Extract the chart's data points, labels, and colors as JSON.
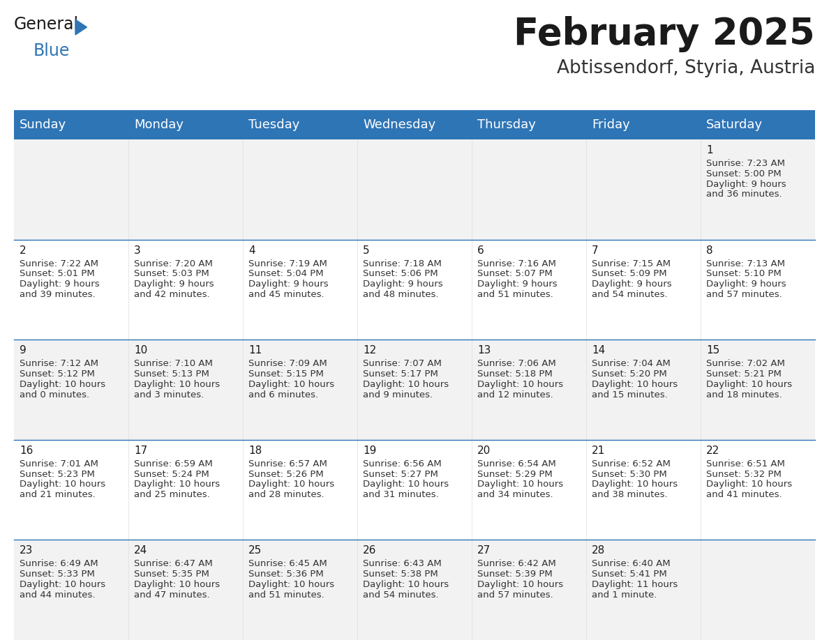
{
  "title": "February 2025",
  "subtitle": "Abtissendorf, Styria, Austria",
  "header_color": "#2E75B6",
  "header_text_color": "#FFFFFF",
  "background_color": "#FFFFFF",
  "cell_bg_white": "#FFFFFF",
  "cell_bg_gray": "#F2F2F2",
  "separator_color": "#2E75B6",
  "cell_border_color": "#FFFFFF",
  "day_names": [
    "Sunday",
    "Monday",
    "Tuesday",
    "Wednesday",
    "Thursday",
    "Friday",
    "Saturday"
  ],
  "title_fontsize": 38,
  "subtitle_fontsize": 19,
  "header_fontsize": 13,
  "cell_day_fontsize": 11,
  "cell_info_fontsize": 9.5,
  "logo_general_fontsize": 17,
  "logo_blue_fontsize": 17,
  "days": [
    {
      "day": 1,
      "col": 6,
      "row": 0,
      "sunrise": "7:23 AM",
      "sunset": "5:00 PM",
      "daylight_h": "9 hours",
      "daylight_m": "and 36 minutes."
    },
    {
      "day": 2,
      "col": 0,
      "row": 1,
      "sunrise": "7:22 AM",
      "sunset": "5:01 PM",
      "daylight_h": "9 hours",
      "daylight_m": "and 39 minutes."
    },
    {
      "day": 3,
      "col": 1,
      "row": 1,
      "sunrise": "7:20 AM",
      "sunset": "5:03 PM",
      "daylight_h": "9 hours",
      "daylight_m": "and 42 minutes."
    },
    {
      "day": 4,
      "col": 2,
      "row": 1,
      "sunrise": "7:19 AM",
      "sunset": "5:04 PM",
      "daylight_h": "9 hours",
      "daylight_m": "and 45 minutes."
    },
    {
      "day": 5,
      "col": 3,
      "row": 1,
      "sunrise": "7:18 AM",
      "sunset": "5:06 PM",
      "daylight_h": "9 hours",
      "daylight_m": "and 48 minutes."
    },
    {
      "day": 6,
      "col": 4,
      "row": 1,
      "sunrise": "7:16 AM",
      "sunset": "5:07 PM",
      "daylight_h": "9 hours",
      "daylight_m": "and 51 minutes."
    },
    {
      "day": 7,
      "col": 5,
      "row": 1,
      "sunrise": "7:15 AM",
      "sunset": "5:09 PM",
      "daylight_h": "9 hours",
      "daylight_m": "and 54 minutes."
    },
    {
      "day": 8,
      "col": 6,
      "row": 1,
      "sunrise": "7:13 AM",
      "sunset": "5:10 PM",
      "daylight_h": "9 hours",
      "daylight_m": "and 57 minutes."
    },
    {
      "day": 9,
      "col": 0,
      "row": 2,
      "sunrise": "7:12 AM",
      "sunset": "5:12 PM",
      "daylight_h": "10 hours",
      "daylight_m": "and 0 minutes."
    },
    {
      "day": 10,
      "col": 1,
      "row": 2,
      "sunrise": "7:10 AM",
      "sunset": "5:13 PM",
      "daylight_h": "10 hours",
      "daylight_m": "and 3 minutes."
    },
    {
      "day": 11,
      "col": 2,
      "row": 2,
      "sunrise": "7:09 AM",
      "sunset": "5:15 PM",
      "daylight_h": "10 hours",
      "daylight_m": "and 6 minutes."
    },
    {
      "day": 12,
      "col": 3,
      "row": 2,
      "sunrise": "7:07 AM",
      "sunset": "5:17 PM",
      "daylight_h": "10 hours",
      "daylight_m": "and 9 minutes."
    },
    {
      "day": 13,
      "col": 4,
      "row": 2,
      "sunrise": "7:06 AM",
      "sunset": "5:18 PM",
      "daylight_h": "10 hours",
      "daylight_m": "and 12 minutes."
    },
    {
      "day": 14,
      "col": 5,
      "row": 2,
      "sunrise": "7:04 AM",
      "sunset": "5:20 PM",
      "daylight_h": "10 hours",
      "daylight_m": "and 15 minutes."
    },
    {
      "day": 15,
      "col": 6,
      "row": 2,
      "sunrise": "7:02 AM",
      "sunset": "5:21 PM",
      "daylight_h": "10 hours",
      "daylight_m": "and 18 minutes."
    },
    {
      "day": 16,
      "col": 0,
      "row": 3,
      "sunrise": "7:01 AM",
      "sunset": "5:23 PM",
      "daylight_h": "10 hours",
      "daylight_m": "and 21 minutes."
    },
    {
      "day": 17,
      "col": 1,
      "row": 3,
      "sunrise": "6:59 AM",
      "sunset": "5:24 PM",
      "daylight_h": "10 hours",
      "daylight_m": "and 25 minutes."
    },
    {
      "day": 18,
      "col": 2,
      "row": 3,
      "sunrise": "6:57 AM",
      "sunset": "5:26 PM",
      "daylight_h": "10 hours",
      "daylight_m": "and 28 minutes."
    },
    {
      "day": 19,
      "col": 3,
      "row": 3,
      "sunrise": "6:56 AM",
      "sunset": "5:27 PM",
      "daylight_h": "10 hours",
      "daylight_m": "and 31 minutes."
    },
    {
      "day": 20,
      "col": 4,
      "row": 3,
      "sunrise": "6:54 AM",
      "sunset": "5:29 PM",
      "daylight_h": "10 hours",
      "daylight_m": "and 34 minutes."
    },
    {
      "day": 21,
      "col": 5,
      "row": 3,
      "sunrise": "6:52 AM",
      "sunset": "5:30 PM",
      "daylight_h": "10 hours",
      "daylight_m": "and 38 minutes."
    },
    {
      "day": 22,
      "col": 6,
      "row": 3,
      "sunrise": "6:51 AM",
      "sunset": "5:32 PM",
      "daylight_h": "10 hours",
      "daylight_m": "and 41 minutes."
    },
    {
      "day": 23,
      "col": 0,
      "row": 4,
      "sunrise": "6:49 AM",
      "sunset": "5:33 PM",
      "daylight_h": "10 hours",
      "daylight_m": "and 44 minutes."
    },
    {
      "day": 24,
      "col": 1,
      "row": 4,
      "sunrise": "6:47 AM",
      "sunset": "5:35 PM",
      "daylight_h": "10 hours",
      "daylight_m": "and 47 minutes."
    },
    {
      "day": 25,
      "col": 2,
      "row": 4,
      "sunrise": "6:45 AM",
      "sunset": "5:36 PM",
      "daylight_h": "10 hours",
      "daylight_m": "and 51 minutes."
    },
    {
      "day": 26,
      "col": 3,
      "row": 4,
      "sunrise": "6:43 AM",
      "sunset": "5:38 PM",
      "daylight_h": "10 hours",
      "daylight_m": "and 54 minutes."
    },
    {
      "day": 27,
      "col": 4,
      "row": 4,
      "sunrise": "6:42 AM",
      "sunset": "5:39 PM",
      "daylight_h": "10 hours",
      "daylight_m": "and 57 minutes."
    },
    {
      "day": 28,
      "col": 5,
      "row": 4,
      "sunrise": "6:40 AM",
      "sunset": "5:41 PM",
      "daylight_h": "11 hours",
      "daylight_m": "and 1 minute."
    }
  ]
}
